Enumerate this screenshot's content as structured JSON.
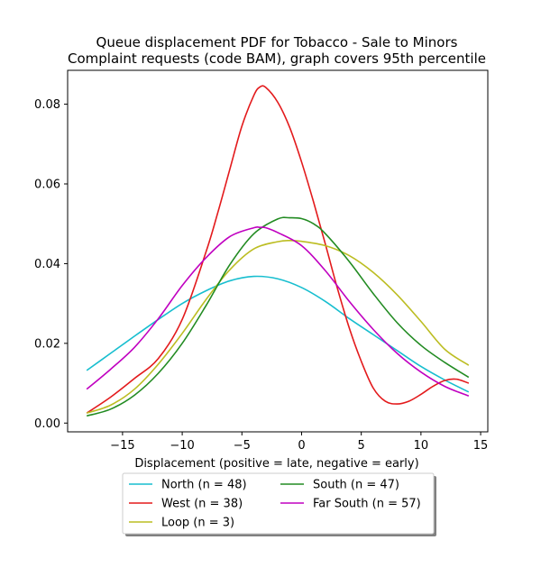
{
  "chart_data": {
    "type": "line",
    "title_line1": "Queue displacement PDF for Tobacco - Sale to Minors",
    "title_line2": "Complaint  requests (code BAM), graph covers 95th percentile",
    "xlabel": "Displacement (positive = late, negative = early)",
    "ylabel": "",
    "xlim": [
      -19.6,
      15.6
    ],
    "ylim": [
      -0.0022,
      0.0885
    ],
    "xticks": [
      -15,
      -10,
      -5,
      0,
      5,
      10,
      15
    ],
    "xtick_labels": [
      "−15",
      "−10",
      "−5",
      "0",
      "5",
      "10",
      "15"
    ],
    "yticks": [
      0.0,
      0.02,
      0.04,
      0.06,
      0.08
    ],
    "ytick_labels": [
      "0.00",
      "0.02",
      "0.04",
      "0.06",
      "0.08"
    ],
    "grid": false,
    "legend_position": "below",
    "series": [
      {
        "name": "North (n = 48)",
        "color": "#17becf",
        "x": [
          -18,
          -16,
          -14,
          -12,
          -10,
          -8,
          -6,
          -4,
          -2,
          0,
          2,
          4,
          6,
          8,
          10,
          12,
          14
        ],
        "y": [
          0.0132,
          0.0175,
          0.0218,
          0.026,
          0.03,
          0.0332,
          0.0357,
          0.0368,
          0.0362,
          0.034,
          0.0305,
          0.0262,
          0.0222,
          0.0182,
          0.0142,
          0.0108,
          0.0078
        ]
      },
      {
        "name": "West (n = 38)",
        "color": "#e31a1c",
        "x": [
          -18,
          -16,
          -14,
          -12,
          -10,
          -8,
          -7,
          -6,
          -5,
          -4,
          -3.5,
          -3,
          -2,
          -1,
          0,
          1,
          2,
          3,
          4,
          5,
          6,
          7,
          8,
          9,
          10,
          11,
          12,
          13,
          14
        ],
        "y": [
          0.0025,
          0.0065,
          0.0112,
          0.0162,
          0.026,
          0.043,
          0.053,
          0.0638,
          0.0745,
          0.0822,
          0.0843,
          0.0842,
          0.0805,
          0.0742,
          0.0655,
          0.0555,
          0.0448,
          0.0338,
          0.0238,
          0.0155,
          0.0088,
          0.0055,
          0.0048,
          0.0055,
          0.0072,
          0.0092,
          0.0107,
          0.011,
          0.01
        ]
      },
      {
        "name": "Loop (n = 3)",
        "color": "#bcbd22",
        "x": [
          -18,
          -16,
          -14,
          -12,
          -10,
          -8,
          -6,
          -4,
          -2,
          -1,
          0,
          2,
          4,
          6,
          8,
          10,
          12,
          14
        ],
        "y": [
          0.0025,
          0.0045,
          0.0085,
          0.0148,
          0.0225,
          0.031,
          0.0385,
          0.0437,
          0.0455,
          0.0458,
          0.0456,
          0.0445,
          0.042,
          0.0378,
          0.0322,
          0.0255,
          0.0185,
          0.0145
        ]
      },
      {
        "name": "South (n = 47)",
        "color": "#228b22",
        "x": [
          -18,
          -16,
          -14,
          -12,
          -10,
          -8,
          -6,
          -4,
          -2,
          -1,
          0,
          1,
          2,
          4,
          6,
          8,
          10,
          12,
          14
        ],
        "y": [
          0.0018,
          0.0035,
          0.007,
          0.0125,
          0.02,
          0.0295,
          0.0398,
          0.0475,
          0.0512,
          0.0515,
          0.0513,
          0.05,
          0.0475,
          0.0405,
          0.0325,
          0.0252,
          0.0195,
          0.0152,
          0.0115
        ]
      },
      {
        "name": "Far South (n = 57)",
        "color": "#c000c0",
        "x": [
          -18,
          -16,
          -14,
          -12,
          -10,
          -8,
          -6,
          -4,
          -3.5,
          -3,
          -2,
          0,
          2,
          4,
          6,
          8,
          10,
          12,
          14
        ],
        "y": [
          0.0085,
          0.0135,
          0.019,
          0.0262,
          0.0345,
          0.0415,
          0.0468,
          0.049,
          0.0491,
          0.049,
          0.0478,
          0.0445,
          0.0382,
          0.0305,
          0.0235,
          0.0175,
          0.0128,
          0.0092,
          0.0068
        ]
      }
    ]
  }
}
